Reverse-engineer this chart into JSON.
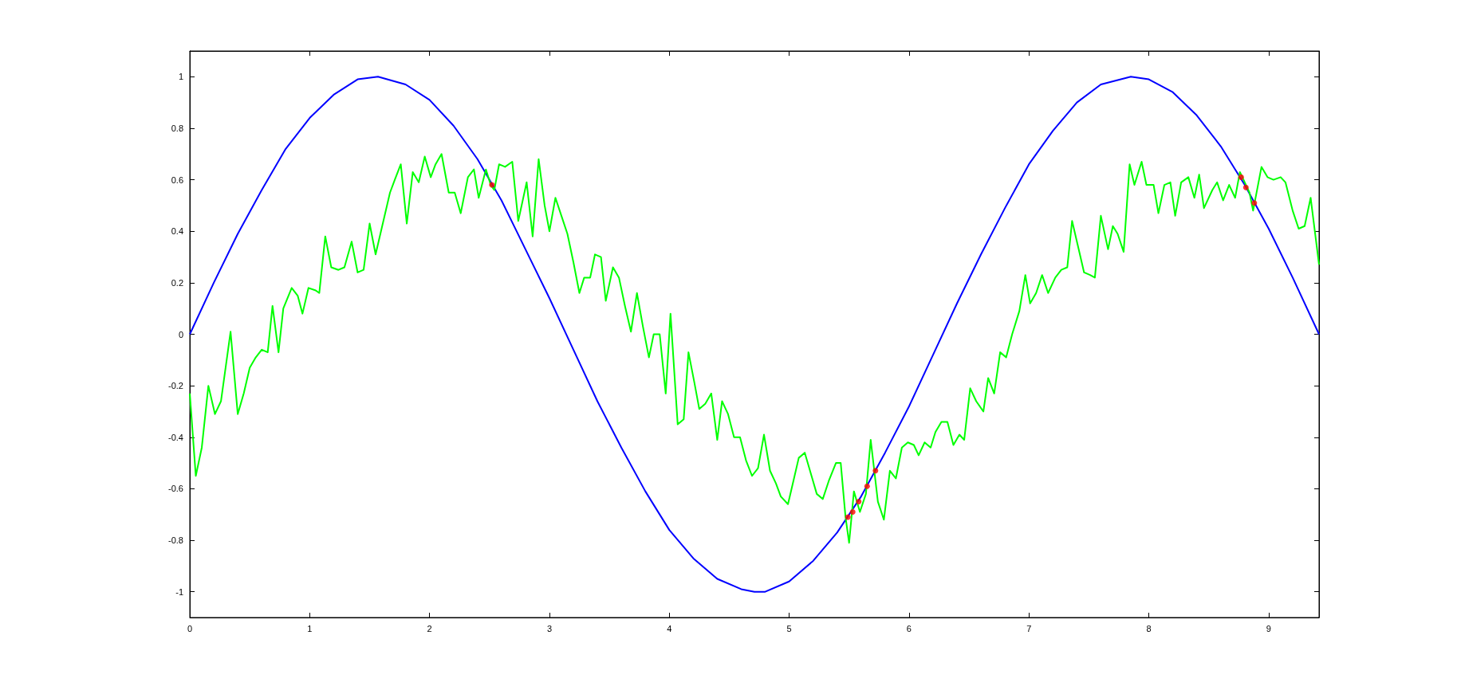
{
  "chart_data": {
    "type": "line",
    "xlim": [
      0,
      9.42
    ],
    "xticks": [
      0,
      1,
      2,
      3,
      4,
      5,
      6,
      7,
      8,
      9
    ],
    "ylim": [
      -1.1,
      1.1
    ],
    "yticks": [
      -1,
      -0.8,
      -0.6,
      -0.4,
      -0.2,
      0,
      0.2,
      0.4,
      0.6,
      0.8,
      1
    ],
    "grid": false,
    "line_style": "solid",
    "marker": "none",
    "series": [
      {
        "color": "#0000ff",
        "x": [
          0,
          0.2,
          0.4,
          0.6,
          0.8,
          1.0,
          1.2,
          1.4,
          1.57,
          1.8,
          2.0,
          2.2,
          2.4,
          2.6,
          2.8,
          3.0,
          3.2,
          3.4,
          3.6,
          3.8,
          4.0,
          4.2,
          4.4,
          4.6,
          4.71,
          4.8,
          5.0,
          5.2,
          5.4,
          5.6,
          5.8,
          6.0,
          6.2,
          6.4,
          6.6,
          6.8,
          7.0,
          7.2,
          7.4,
          7.6,
          7.85,
          8.0,
          8.2,
          8.4,
          8.6,
          8.8,
          9.0,
          9.2,
          9.42
        ],
        "values": [
          0,
          0.2,
          0.39,
          0.56,
          0.72,
          0.84,
          0.93,
          0.99,
          1.0,
          0.97,
          0.91,
          0.81,
          0.68,
          0.52,
          0.33,
          0.14,
          -0.06,
          -0.26,
          -0.44,
          -0.61,
          -0.76,
          -0.87,
          -0.95,
          -0.99,
          -1.0,
          -1.0,
          -0.96,
          -0.88,
          -0.77,
          -0.63,
          -0.46,
          -0.28,
          -0.08,
          0.12,
          0.31,
          0.49,
          0.66,
          0.79,
          0.9,
          0.97,
          1.0,
          0.99,
          0.94,
          0.85,
          0.73,
          0.58,
          0.41,
          0.22,
          0.0
        ]
      },
      {
        "color": "#00ff00",
        "x": [
          0,
          0.05,
          0.1,
          0.155,
          0.21,
          0.26,
          0.34,
          0.4,
          0.45,
          0.5,
          0.55,
          0.6,
          0.65,
          0.69,
          0.74,
          0.78,
          0.85,
          0.9,
          0.94,
          0.99,
          1.05,
          1.08,
          1.13,
          1.18,
          1.24,
          1.29,
          1.35,
          1.4,
          1.45,
          1.5,
          1.55,
          1.62,
          1.67,
          1.71,
          1.76,
          1.81,
          1.86,
          1.91,
          1.96,
          2.01,
          2.05,
          2.1,
          2.16,
          2.21,
          2.26,
          2.32,
          2.37,
          2.41,
          2.47,
          2.51,
          2.54,
          2.58,
          2.63,
          2.69,
          2.74,
          2.81,
          2.86,
          2.91,
          2.96,
          3.0,
          3.05,
          3.1,
          3.15,
          3.2,
          3.25,
          3.29,
          3.34,
          3.38,
          3.43,
          3.47,
          3.53,
          3.58,
          3.63,
          3.68,
          3.73,
          3.78,
          3.83,
          3.87,
          3.92,
          3.97,
          4.01,
          4.07,
          4.12,
          4.16,
          4.21,
          4.25,
          4.3,
          4.35,
          4.4,
          4.44,
          4.49,
          4.54,
          4.59,
          4.64,
          4.69,
          4.74,
          4.79,
          4.84,
          4.89,
          4.93,
          4.99,
          5.03,
          5.08,
          5.13,
          5.18,
          5.23,
          5.28,
          5.33,
          5.39,
          5.43,
          5.47,
          5.5,
          5.54,
          5.59,
          5.64,
          5.68,
          5.74,
          5.79,
          5.84,
          5.89,
          5.94,
          5.99,
          6.04,
          6.08,
          6.13,
          6.18,
          6.22,
          6.27,
          6.32,
          6.37,
          6.42,
          6.46,
          6.51,
          6.56,
          6.62,
          6.66,
          6.71,
          6.76,
          6.81,
          6.86,
          6.92,
          6.97,
          7.01,
          7.06,
          7.11,
          7.16,
          7.22,
          7.27,
          7.32,
          7.36,
          7.42,
          7.46,
          7.51,
          7.55,
          7.6,
          7.66,
          7.7,
          7.74,
          7.79,
          7.84,
          7.88,
          7.94,
          7.98,
          8.04,
          8.08,
          8.13,
          8.18,
          8.22,
          8.27,
          8.33,
          8.38,
          8.42,
          8.46,
          8.53,
          8.57,
          8.62,
          8.67,
          8.72,
          8.76,
          8.84,
          8.87,
          8.94,
          8.99,
          9.04,
          9.1,
          9.14,
          9.2,
          9.25,
          9.3,
          9.35,
          9.42
        ],
        "values": [
          -0.23,
          -0.55,
          -0.44,
          -0.2,
          -0.31,
          -0.26,
          0.01,
          -0.31,
          -0.23,
          -0.13,
          -0.09,
          -0.06,
          -0.07,
          0.11,
          -0.07,
          0.1,
          0.18,
          0.15,
          0.08,
          0.18,
          0.17,
          0.16,
          0.38,
          0.26,
          0.25,
          0.26,
          0.36,
          0.24,
          0.25,
          0.43,
          0.31,
          0.45,
          0.55,
          0.6,
          0.66,
          0.43,
          0.63,
          0.59,
          0.69,
          0.61,
          0.66,
          0.7,
          0.55,
          0.55,
          0.47,
          0.61,
          0.64,
          0.53,
          0.64,
          0.58,
          0.56,
          0.66,
          0.65,
          0.67,
          0.44,
          0.59,
          0.38,
          0.68,
          0.5,
          0.4,
          0.53,
          0.46,
          0.39,
          0.28,
          0.16,
          0.22,
          0.22,
          0.31,
          0.3,
          0.13,
          0.26,
          0.22,
          0.11,
          0.01,
          0.16,
          0.03,
          -0.09,
          0.0,
          0.0,
          -0.23,
          0.08,
          -0.35,
          -0.33,
          -0.07,
          -0.19,
          -0.29,
          -0.27,
          -0.23,
          -0.41,
          -0.26,
          -0.31,
          -0.4,
          -0.4,
          -0.49,
          -0.55,
          -0.52,
          -0.39,
          -0.53,
          -0.58,
          -0.63,
          -0.66,
          -0.58,
          -0.48,
          -0.46,
          -0.54,
          -0.62,
          -0.64,
          -0.57,
          -0.5,
          -0.5,
          -0.71,
          -0.81,
          -0.61,
          -0.69,
          -0.62,
          -0.41,
          -0.65,
          -0.72,
          -0.53,
          -0.56,
          -0.44,
          -0.42,
          -0.43,
          -0.47,
          -0.42,
          -0.44,
          -0.38,
          -0.34,
          -0.34,
          -0.43,
          -0.39,
          -0.41,
          -0.21,
          -0.26,
          -0.3,
          -0.17,
          -0.23,
          -0.07,
          -0.09,
          0.0,
          0.09,
          0.23,
          0.12,
          0.16,
          0.23,
          0.16,
          0.22,
          0.25,
          0.26,
          0.44,
          0.32,
          0.24,
          0.23,
          0.22,
          0.46,
          0.33,
          0.42,
          0.39,
          0.32,
          0.66,
          0.58,
          0.67,
          0.58,
          0.58,
          0.47,
          0.58,
          0.59,
          0.46,
          0.59,
          0.61,
          0.53,
          0.62,
          0.49,
          0.56,
          0.59,
          0.52,
          0.58,
          0.53,
          0.63,
          0.55,
          0.48,
          0.65,
          0.61,
          0.6,
          0.61,
          0.59,
          0.48,
          0.41,
          0.42,
          0.53,
          0.27
        ]
      },
      {
        "type": "scatter",
        "color": "#ff0000",
        "marker": "circle",
        "x": [
          2.52,
          5.49,
          5.53,
          5.58,
          5.65,
          5.72,
          8.77,
          8.81,
          8.88
        ],
        "values": [
          0.58,
          -0.71,
          -0.69,
          -0.65,
          -0.59,
          -0.53,
          0.61,
          0.57,
          0.51
        ]
      }
    ]
  }
}
